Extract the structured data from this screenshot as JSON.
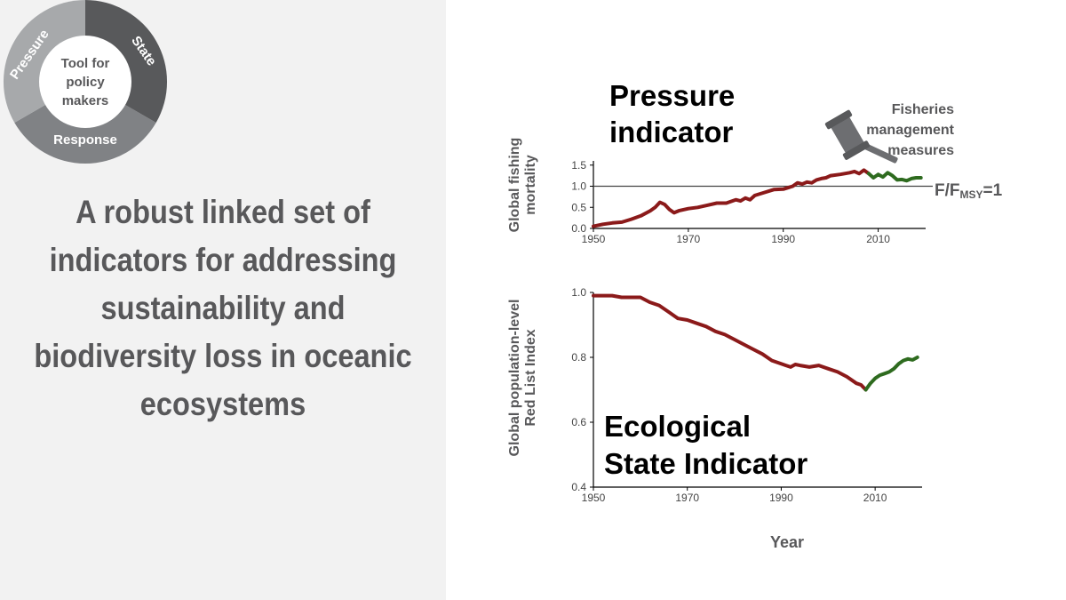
{
  "wheel": {
    "center_lines": [
      "Tool for",
      "policy",
      "makers"
    ],
    "segments": [
      "Pressure",
      "State",
      "Response"
    ],
    "colors": {
      "pressure": "#a7a9ab",
      "state": "#58595b",
      "response": "#808285",
      "center": "#ffffff"
    }
  },
  "headline": {
    "lines": [
      "A robust linked set of",
      "indicators for addressing",
      "sustainability and",
      "biodiversity loss in oceanic",
      "ecosystems"
    ],
    "color": "#58585a"
  },
  "annotations": {
    "pressure_title": [
      "Pressure",
      "indicator"
    ],
    "state_title": [
      "Ecological",
      "State Indicator"
    ],
    "fisheries": [
      "Fisheries",
      "management",
      "measures"
    ],
    "gavel_icon": "gavel-icon",
    "reference_main": "F/F",
    "reference_sub": "MSY",
    "reference_tail": "=1",
    "x_axis_title": "Year"
  },
  "chart_data": [
    {
      "type": "line",
      "ylabel": [
        "Global fishing",
        "mortality"
      ],
      "xlim": [
        1950,
        2020
      ],
      "ylim": [
        0.0,
        1.6
      ],
      "xticks": [
        1950,
        1970,
        1990,
        2010
      ],
      "yticks": [
        "0.0",
        "0.5",
        "1.0",
        "1.5"
      ],
      "reference_line": 1.0,
      "series": [
        {
          "color": "#8b1a1a",
          "x": [
            1950,
            1952,
            1954,
            1956,
            1958,
            1960,
            1962,
            1963,
            1964,
            1965,
            1966,
            1967,
            1968,
            1970,
            1972,
            1974,
            1976,
            1978,
            1980,
            1981,
            1982,
            1983,
            1984,
            1986,
            1988,
            1990,
            1992,
            1993,
            1994,
            1995,
            1996,
            1997,
            1998,
            1999,
            2000,
            2002,
            2004,
            2005,
            2006,
            2007,
            2008
          ],
          "y": [
            0.05,
            0.1,
            0.13,
            0.15,
            0.22,
            0.3,
            0.42,
            0.5,
            0.62,
            0.57,
            0.45,
            0.37,
            0.42,
            0.47,
            0.5,
            0.55,
            0.6,
            0.6,
            0.68,
            0.65,
            0.72,
            0.68,
            0.78,
            0.85,
            0.92,
            0.93,
            1.0,
            1.08,
            1.05,
            1.1,
            1.08,
            1.15,
            1.18,
            1.2,
            1.25,
            1.28,
            1.32,
            1.35,
            1.3,
            1.38,
            1.3
          ]
        },
        {
          "color": "#2e6b1f",
          "x": [
            2008,
            2009,
            2010,
            2011,
            2012,
            2013,
            2014,
            2015,
            2016,
            2017,
            2018,
            2019
          ],
          "y": [
            1.3,
            1.2,
            1.28,
            1.22,
            1.32,
            1.25,
            1.15,
            1.16,
            1.13,
            1.18,
            1.2,
            1.2
          ]
        }
      ]
    },
    {
      "type": "line",
      "ylabel": [
        "Global population-level",
        "Red List Index"
      ],
      "xlabel": "Year",
      "xlim": [
        1950,
        2020
      ],
      "ylim": [
        0.4,
        1.0
      ],
      "xticks": [
        1950,
        1970,
        1990,
        2010
      ],
      "yticks": [
        "0.4",
        "0.6",
        "0.8",
        "1.0"
      ],
      "series": [
        {
          "color": "#8b1a1a",
          "x": [
            1950,
            1952,
            1954,
            1956,
            1958,
            1960,
            1962,
            1964,
            1966,
            1968,
            1970,
            1972,
            1974,
            1976,
            1978,
            1980,
            1982,
            1984,
            1986,
            1988,
            1990,
            1991,
            1992,
            1993,
            1994,
            1996,
            1998,
            2000,
            2002,
            2004,
            2006,
            2007,
            2008
          ],
          "y": [
            0.99,
            0.99,
            0.99,
            0.985,
            0.985,
            0.985,
            0.97,
            0.96,
            0.94,
            0.92,
            0.915,
            0.905,
            0.895,
            0.88,
            0.87,
            0.855,
            0.84,
            0.825,
            0.81,
            0.79,
            0.78,
            0.775,
            0.77,
            0.778,
            0.775,
            0.77,
            0.775,
            0.765,
            0.755,
            0.74,
            0.72,
            0.715,
            0.7
          ]
        },
        {
          "color": "#2e6b1f",
          "x": [
            2008,
            2009,
            2010,
            2011,
            2012,
            2013,
            2014,
            2015,
            2016,
            2017,
            2018,
            2019
          ],
          "y": [
            0.7,
            0.72,
            0.735,
            0.745,
            0.75,
            0.755,
            0.765,
            0.78,
            0.79,
            0.795,
            0.792,
            0.8
          ]
        }
      ]
    }
  ]
}
